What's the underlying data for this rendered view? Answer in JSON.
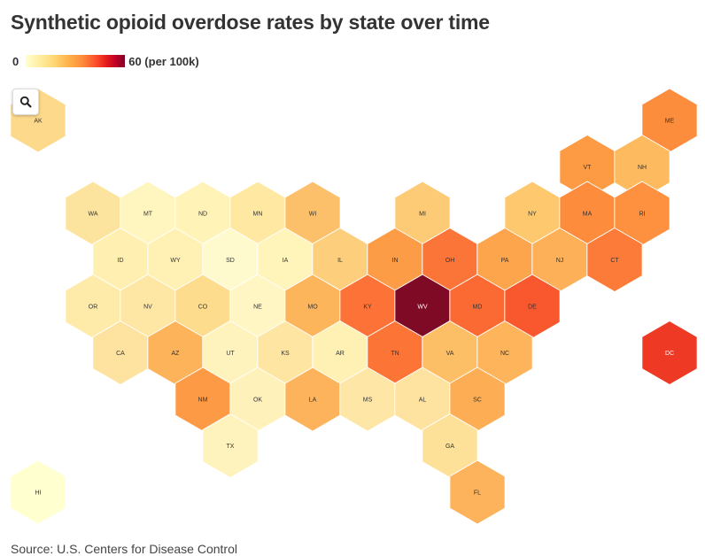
{
  "title": "Synthetic opioid overdose rates by state over time",
  "legend": {
    "min_label": "0",
    "max_label": "60 (per 100k)"
  },
  "zoom_icon": "search-icon",
  "source": "Source: U.S. Centers for Disease Control",
  "colors": {
    "stroke": "#ffffff"
  },
  "states": [
    {
      "abbr": "AK",
      "color": "#fdd98c"
    },
    {
      "abbr": "ME",
      "color": "#fc8d3c"
    },
    {
      "abbr": "VT",
      "color": "#fd9a44"
    },
    {
      "abbr": "NH",
      "color": "#fdba5e"
    },
    {
      "abbr": "WA",
      "color": "#fde49e"
    },
    {
      "abbr": "MT",
      "color": "#fff5bf"
    },
    {
      "abbr": "ND",
      "color": "#fff3b8"
    },
    {
      "abbr": "MN",
      "color": "#fee8a2"
    },
    {
      "abbr": "WI",
      "color": "#fdc06a"
    },
    {
      "abbr": "MI",
      "color": "#fdca76"
    },
    {
      "abbr": "NY",
      "color": "#fdc86e"
    },
    {
      "abbr": "MA",
      "color": "#fd8c3c"
    },
    {
      "abbr": "RI",
      "color": "#fd9140"
    },
    {
      "abbr": "ID",
      "color": "#fff0b2"
    },
    {
      "abbr": "WY",
      "color": "#fff1b4"
    },
    {
      "abbr": "SD",
      "color": "#ffface"
    },
    {
      "abbr": "IA",
      "color": "#fff4ba"
    },
    {
      "abbr": "IL",
      "color": "#fdcf7c"
    },
    {
      "abbr": "IN",
      "color": "#fd9c47"
    },
    {
      "abbr": "OH",
      "color": "#fc7538"
    },
    {
      "abbr": "PA",
      "color": "#fda54d"
    },
    {
      "abbr": "NJ",
      "color": "#fdb057"
    },
    {
      "abbr": "CT",
      "color": "#fc7b39"
    },
    {
      "abbr": "OR",
      "color": "#feeba9"
    },
    {
      "abbr": "NV",
      "color": "#fee7a4"
    },
    {
      "abbr": "CO",
      "color": "#fddc8e"
    },
    {
      "abbr": "NE",
      "color": "#fff6c4"
    },
    {
      "abbr": "MO",
      "color": "#fdb55c"
    },
    {
      "abbr": "KY",
      "color": "#fc7237"
    },
    {
      "abbr": "WV",
      "color": "#7e0a25"
    },
    {
      "abbr": "MD",
      "color": "#fc6a33"
    },
    {
      "abbr": "DE",
      "color": "#f9582e"
    },
    {
      "abbr": "CA",
      "color": "#fee3a0"
    },
    {
      "abbr": "AZ",
      "color": "#fdb35a"
    },
    {
      "abbr": "UT",
      "color": "#fff3bd"
    },
    {
      "abbr": "KS",
      "color": "#fee6a2"
    },
    {
      "abbr": "AR",
      "color": "#fff0b4"
    },
    {
      "abbr": "TN",
      "color": "#fc7436"
    },
    {
      "abbr": "VA",
      "color": "#fdbf66"
    },
    {
      "abbr": "NC",
      "color": "#fdb45a"
    },
    {
      "abbr": "DC",
      "color": "#ee3a25"
    },
    {
      "abbr": "NM",
      "color": "#fd9a45"
    },
    {
      "abbr": "OK",
      "color": "#fff1ba"
    },
    {
      "abbr": "LA",
      "color": "#fdb35b"
    },
    {
      "abbr": "MS",
      "color": "#fee7a6"
    },
    {
      "abbr": "AL",
      "color": "#fee3a0"
    },
    {
      "abbr": "SC",
      "color": "#fdae55"
    },
    {
      "abbr": "TX",
      "color": "#fff3bd"
    },
    {
      "abbr": "GA",
      "color": "#fee199"
    },
    {
      "abbr": "HI",
      "color": "#ffffd0"
    },
    {
      "abbr": "FL",
      "color": "#fdb35b"
    }
  ]
}
